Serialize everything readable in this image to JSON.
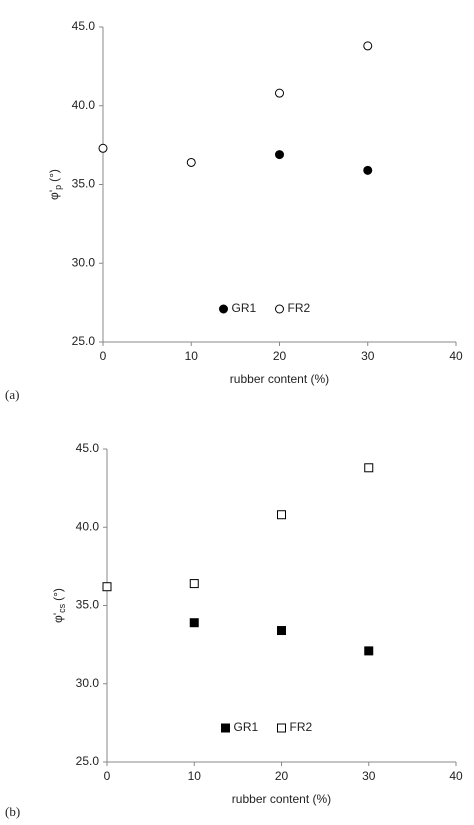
{
  "chart_data": [
    {
      "type": "scatter",
      "panel": "(a)",
      "ylabel": {
        "main": "φ'",
        "sub": "p",
        "unit": "(°)"
      },
      "xlabel": "rubber content (%)",
      "xlim": [
        0,
        40
      ],
      "xticks": [
        0,
        10,
        20,
        30,
        40
      ],
      "ylim": [
        25,
        45
      ],
      "yticks": [
        {
          "value": 25,
          "label": "25.0"
        },
        {
          "value": 30,
          "label": "30.0"
        },
        {
          "value": 35,
          "label": "35.0"
        },
        {
          "value": 40,
          "label": "40.0"
        },
        {
          "value": 45,
          "label": "45.0"
        }
      ],
      "legend": "lower center",
      "series": [
        {
          "name": "GR1",
          "marker": "circle",
          "filled": true,
          "color": "#000000",
          "x": [
            20,
            30
          ],
          "values": [
            36.9,
            35.9
          ]
        },
        {
          "name": "FR2",
          "marker": "circle",
          "filled": false,
          "color": "#000000",
          "x": [
            0,
            10,
            20,
            30
          ],
          "values": [
            37.3,
            36.4,
            40.8,
            43.8
          ]
        }
      ]
    },
    {
      "type": "scatter",
      "panel": "(b)",
      "ylabel": {
        "main": "φ'",
        "sub": "cs",
        "unit": "(°)"
      },
      "xlabel": "rubber content (%)",
      "xlim": [
        0,
        40
      ],
      "xticks": [
        0,
        10,
        20,
        30,
        40
      ],
      "ylim": [
        25,
        45
      ],
      "yticks": [
        {
          "value": 25,
          "label": "25.0"
        },
        {
          "value": 30,
          "label": "30.0"
        },
        {
          "value": 35,
          "label": "35.0"
        },
        {
          "value": 40,
          "label": "40.0"
        },
        {
          "value": 45,
          "label": "45.0"
        }
      ],
      "legend": "lower center",
      "series": [
        {
          "name": "GR1",
          "marker": "square",
          "filled": true,
          "color": "#000000",
          "x": [
            10,
            20,
            30
          ],
          "values": [
            33.9,
            33.4,
            32.1
          ]
        },
        {
          "name": "FR2",
          "marker": "square",
          "filled": false,
          "color": "#000000",
          "x": [
            0,
            10,
            20,
            30
          ],
          "values": [
            36.2,
            36.4,
            40.8,
            43.8
          ]
        }
      ]
    }
  ]
}
